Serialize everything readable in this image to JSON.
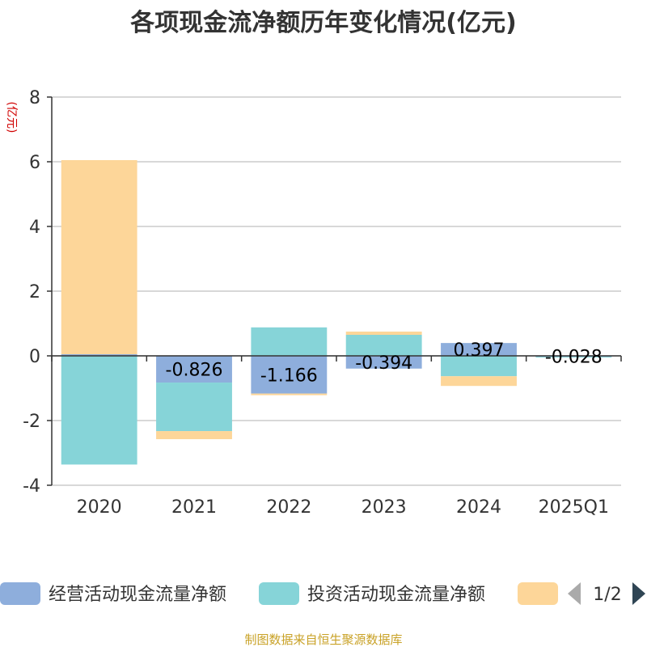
{
  "chart_data": {
    "type": "bar",
    "stacked": true,
    "title": "各项现金流净额历年变化情况(亿元)",
    "ylabel": "(亿元)",
    "ylim": [
      -4,
      8
    ],
    "yticks": [
      8,
      6,
      4,
      2,
      0,
      -2,
      -4
    ],
    "grid": true,
    "categories": [
      "2020",
      "2021",
      "2022",
      "2023",
      "2024",
      "2025Q1"
    ],
    "series": [
      {
        "name": "经营活动现金流量净额",
        "color": "#8eaedc",
        "values": [
          0.05,
          -0.826,
          -1.166,
          -0.394,
          0.397,
          -0.028
        ],
        "labels": [
          "",
          "-0.826",
          "-1.166",
          "-0.394",
          "0.397",
          "-0.028"
        ]
      },
      {
        "name": "投资活动现金流量净额",
        "color": "#86d4d8",
        "values": [
          -3.36,
          -1.5,
          0.88,
          0.65,
          -0.63,
          -0.01
        ]
      },
      {
        "name": "",
        "color": "#fdd699",
        "values": [
          6.0,
          -0.25,
          -0.05,
          0.1,
          -0.3,
          0
        ]
      }
    ],
    "legend": {
      "position": "bottom",
      "page_indicator": "1/2"
    }
  },
  "source_text": "制图数据来自恒生聚源数据库"
}
